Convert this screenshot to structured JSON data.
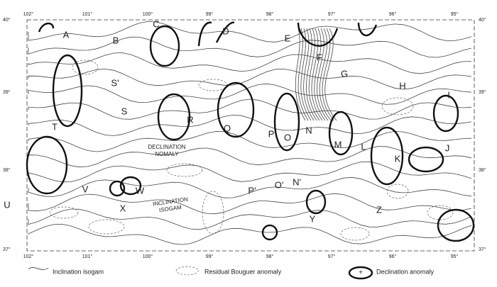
{
  "map": {
    "longitudes_top": [
      "102°",
      "101°",
      "100°",
      "99°",
      "98°",
      "97°",
      "96°",
      "95°"
    ],
    "longitudes_bottom": [
      "102°",
      "101°",
      "100°",
      "99°",
      "98°",
      "97°",
      "96°",
      "95°"
    ],
    "latitudes_left": [
      "40°",
      "39°",
      "38°",
      "37°"
    ],
    "latitudes_right": [
      "40°",
      "39°",
      "38°",
      "37°"
    ],
    "labels": [
      "A",
      "B",
      "C",
      "D",
      "E",
      "F",
      "G",
      "H",
      "I",
      "J",
      "K",
      "L",
      "M",
      "N",
      "O",
      "P",
      "Q",
      "R",
      "S",
      "S'",
      "T",
      "U",
      "V",
      "W",
      "X",
      "Y",
      "Z",
      "P'",
      "O'",
      "N'"
    ],
    "annotations": [
      "DECLINATION",
      "NOMALY",
      "INCLINATION",
      "ISOGAM"
    ]
  },
  "legend": [
    "Inclination isogam",
    "Residual Bouguer anomaly",
    "Declination anomaly"
  ]
}
